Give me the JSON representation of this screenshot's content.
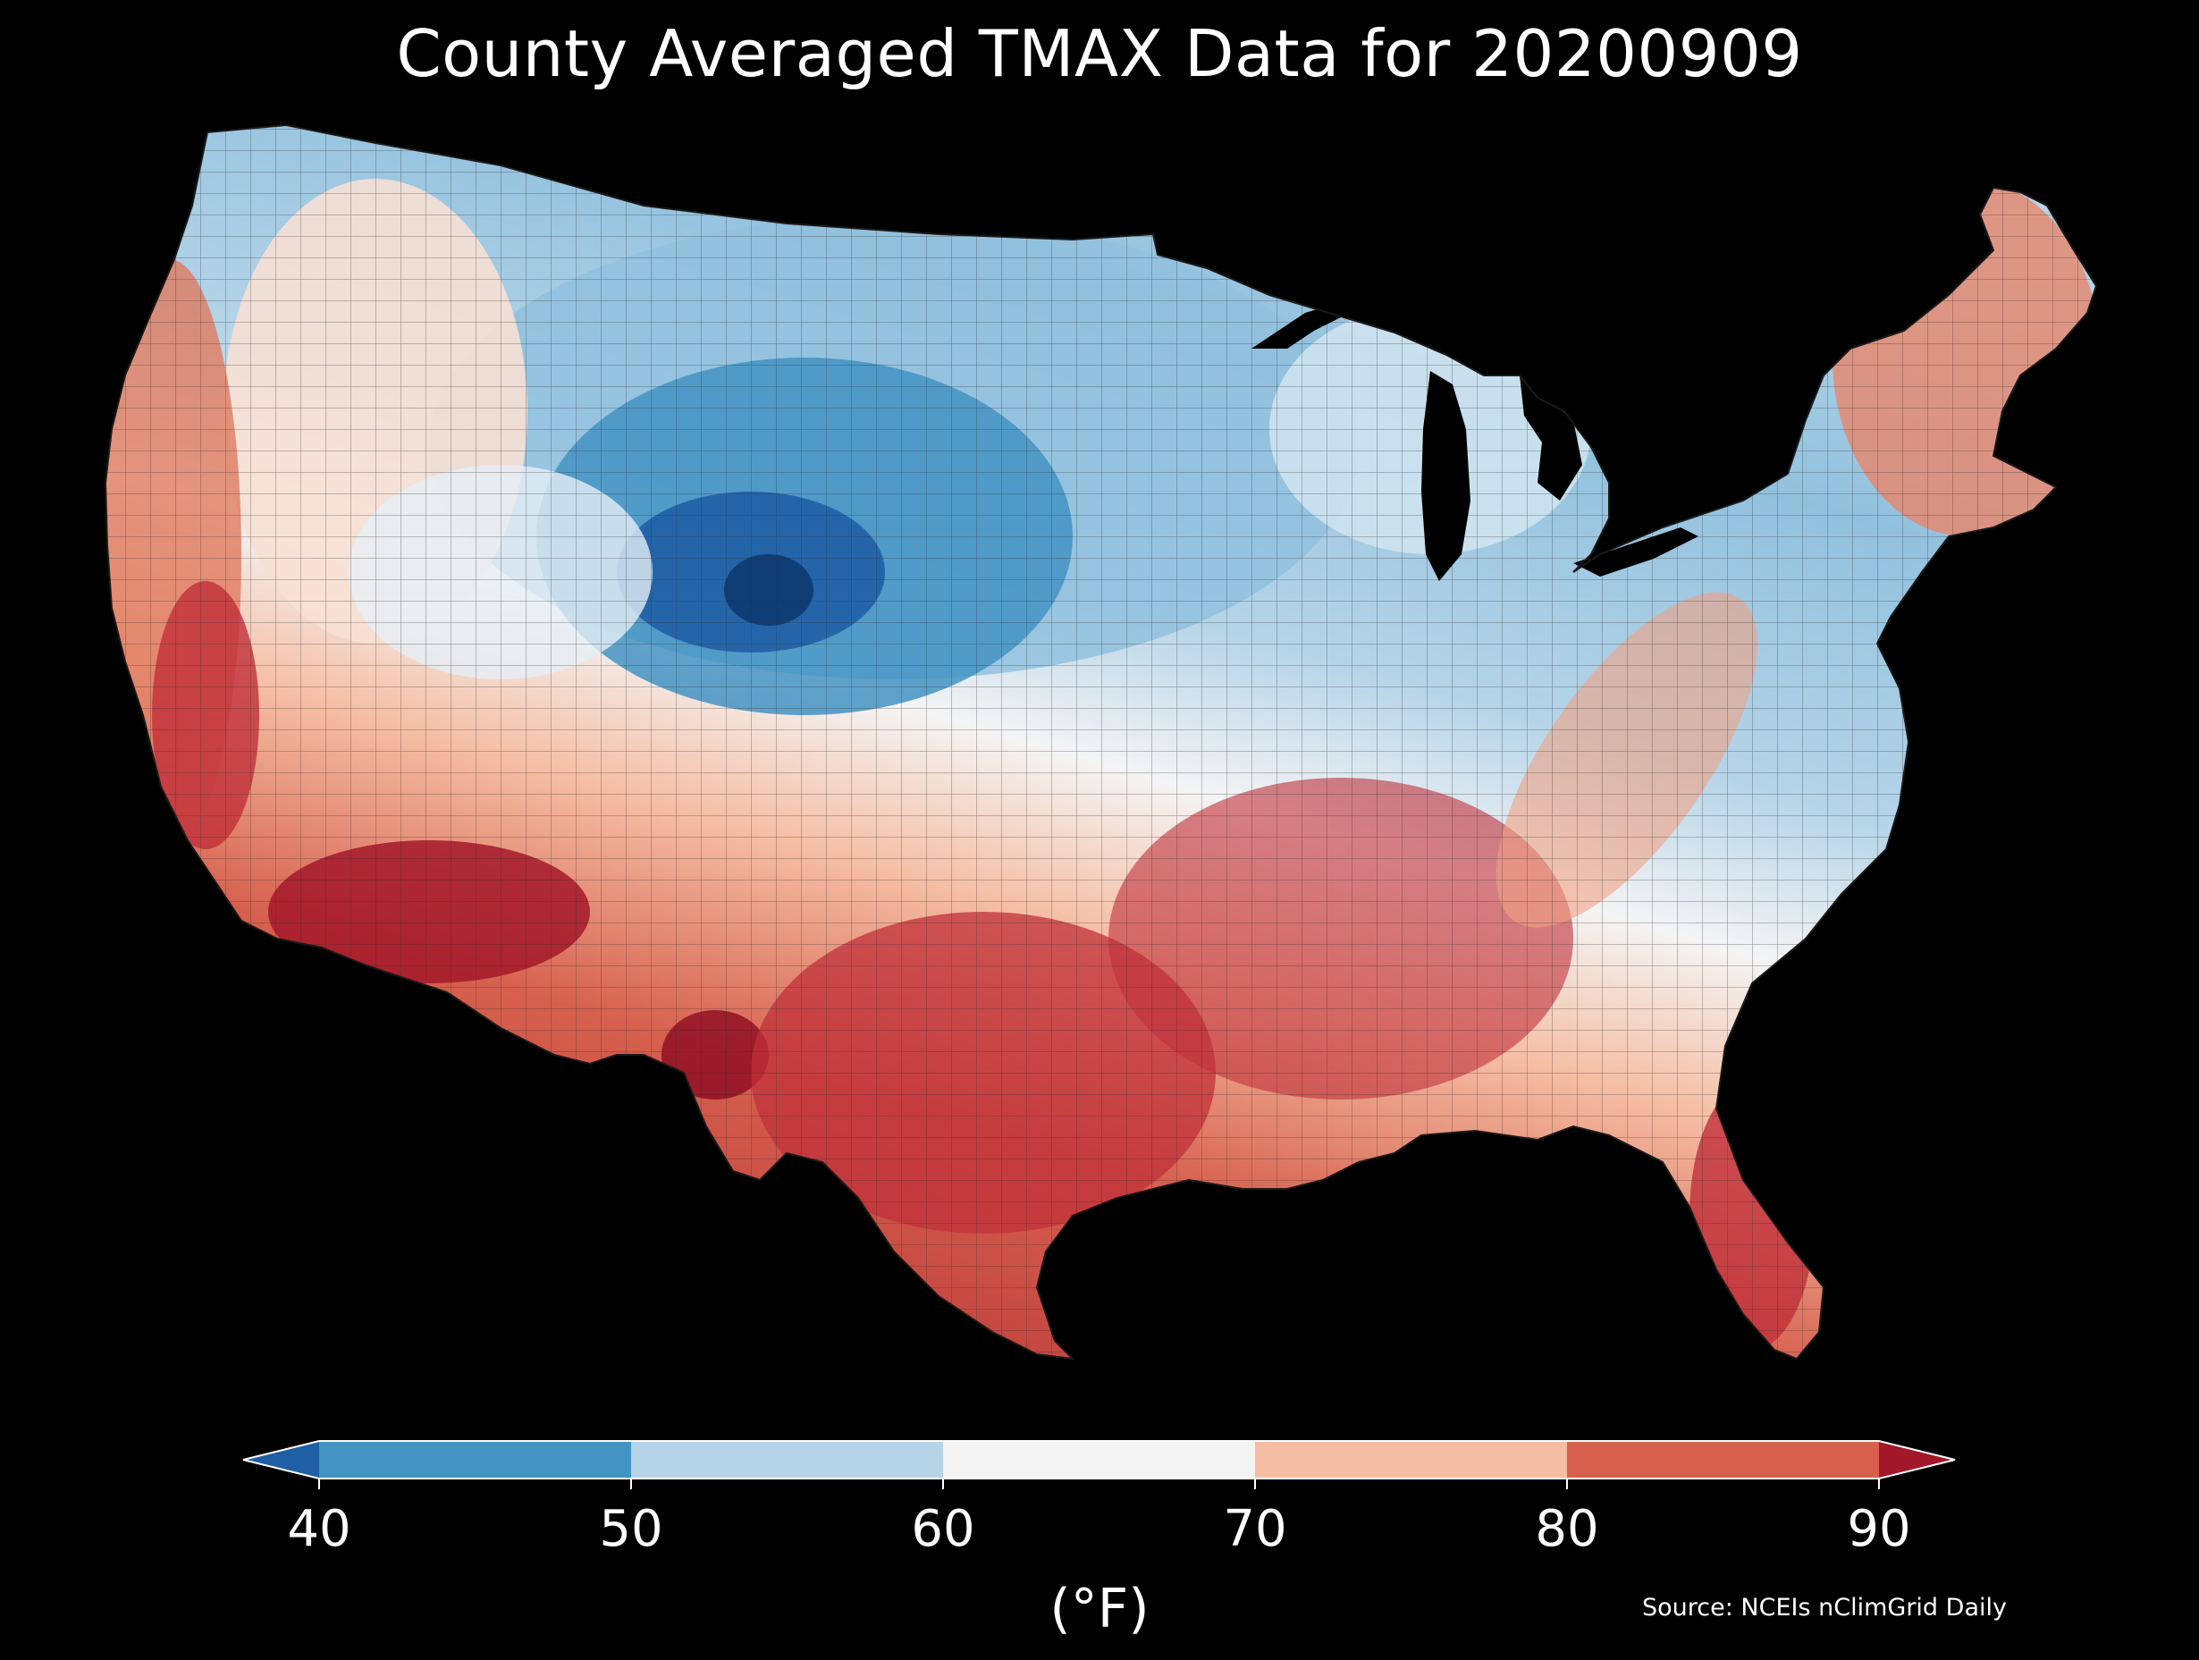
{
  "title": "County Averaged TMAX Data for 20200909",
  "colorbar": {
    "units": "(°F)",
    "ticks": [
      "40",
      "50",
      "60",
      "70",
      "80",
      "90"
    ],
    "bins": [
      {
        "range": "<40",
        "color": "#1f5fa6"
      },
      {
        "range": "40-50",
        "color": "#4393c3"
      },
      {
        "range": "50-60",
        "color": "#b5d4e8"
      },
      {
        "range": "60-70",
        "color": "#f4f4f4"
      },
      {
        "range": "70-80",
        "color": "#f5bda3"
      },
      {
        "range": "80-90",
        "color": "#d6604d"
      },
      {
        "range": ">90",
        "color": "#a3172a"
      }
    ]
  },
  "source": "Source: NCEIs nClimGrid Daily",
  "colors": {
    "background": "#000000",
    "text": "#ffffff",
    "county_border": "#2b2b2b"
  }
}
